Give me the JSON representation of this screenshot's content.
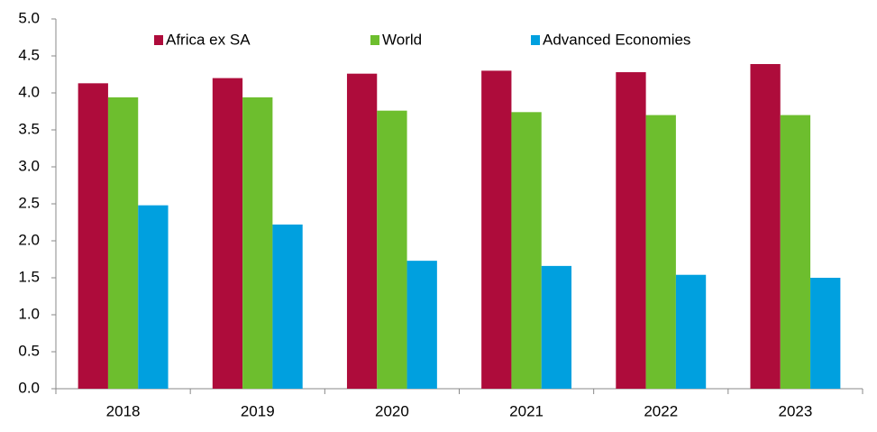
{
  "chart_data": {
    "type": "bar",
    "categories": [
      "2018",
      "2019",
      "2020",
      "2021",
      "2022",
      "2023"
    ],
    "series": [
      {
        "name": "Africa ex SA",
        "color": "#ae0c3b",
        "values": [
          4.13,
          4.2,
          4.26,
          4.3,
          4.28,
          4.39
        ]
      },
      {
        "name": "World",
        "color": "#6dbe2e",
        "values": [
          3.94,
          3.94,
          3.76,
          3.74,
          3.7,
          3.7
        ]
      },
      {
        "name": "Advanced Economies",
        "color": "#00a0df",
        "values": [
          2.48,
          2.22,
          1.73,
          1.66,
          1.54,
          1.5
        ]
      }
    ],
    "ylim": [
      0,
      5
    ],
    "yticks": [
      {
        "value": 0,
        "label": "0.0"
      },
      0.5,
      {
        "value": 1,
        "label": "1.0"
      },
      1.5,
      {
        "value": 2,
        "label": "2.0"
      },
      2.5,
      {
        "value": 3,
        "label": "3.0"
      },
      3.5,
      {
        "value": 4,
        "label": "4.0"
      },
      4.5,
      {
        "value": 5,
        "label": "5.0"
      }
    ],
    "grid": false,
    "legend": "top"
  }
}
